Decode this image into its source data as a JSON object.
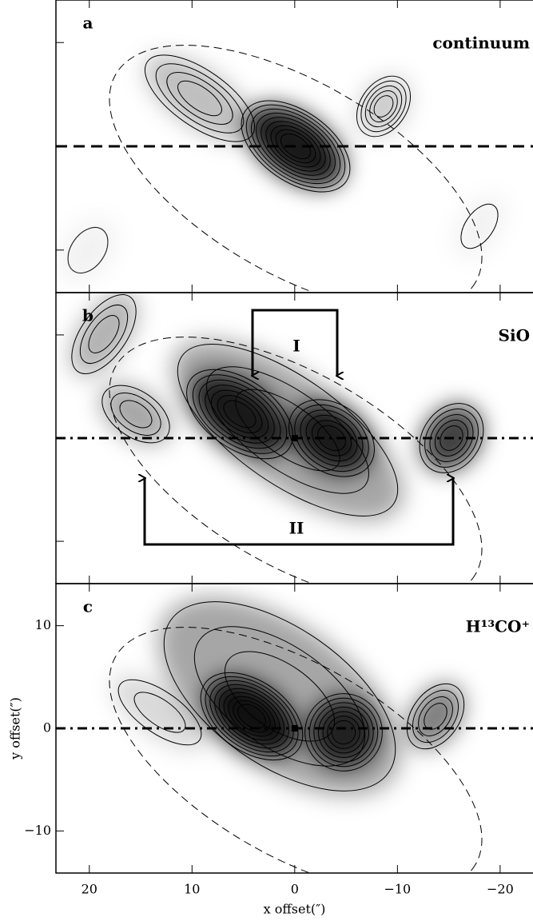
{
  "chart_data": [
    {
      "type": "contour",
      "panel_label": "a",
      "title": "continuum",
      "xlim": [
        23.25,
        -23.2
      ],
      "ylim": [
        -14.1,
        14.1
      ],
      "xticks": [
        20,
        10,
        0,
        {
          "value": -10,
          "label": "−10"
        },
        {
          "value": -20,
          "label": "−20"
        }
      ],
      "yticks": [
        {
          "value": -10,
          "label": "−10"
        },
        0,
        10
      ],
      "ytick_labels": false,
      "xtick_labels": false,
      "hline": 0
    },
    {
      "type": "contour",
      "panel_label": "b",
      "title": "SiO",
      "xlim": [
        23.25,
        -23.2
      ],
      "ylim": [
        -14.1,
        14.1
      ],
      "xticks": [
        20,
        10,
        0,
        {
          "value": -10,
          "label": "−10"
        },
        {
          "value": -20,
          "label": "−20"
        }
      ],
      "yticks": [
        {
          "value": -10,
          "label": "−10"
        },
        0,
        10
      ],
      "ytick_labels": false,
      "xtick_labels": false,
      "hline": 0,
      "annotations": [
        "I",
        "II"
      ]
    },
    {
      "type": "contour",
      "panel_label": "c",
      "title": "H¹³CO⁺",
      "xlim": [
        23.25,
        -23.2
      ],
      "ylim": [
        -14.1,
        14.1
      ],
      "xticks": [
        20,
        10,
        0,
        {
          "value": -10,
          "label": "−10"
        },
        {
          "value": -20,
          "label": "−20"
        }
      ],
      "yticks": [
        {
          "value": -10,
          "label": "−10"
        },
        0,
        10
      ],
      "ytick_labels": true,
      "xtick_labels": true,
      "hline": 0,
      "xlabel": "x offset(″)",
      "ylabel": "y offset(″)"
    }
  ]
}
